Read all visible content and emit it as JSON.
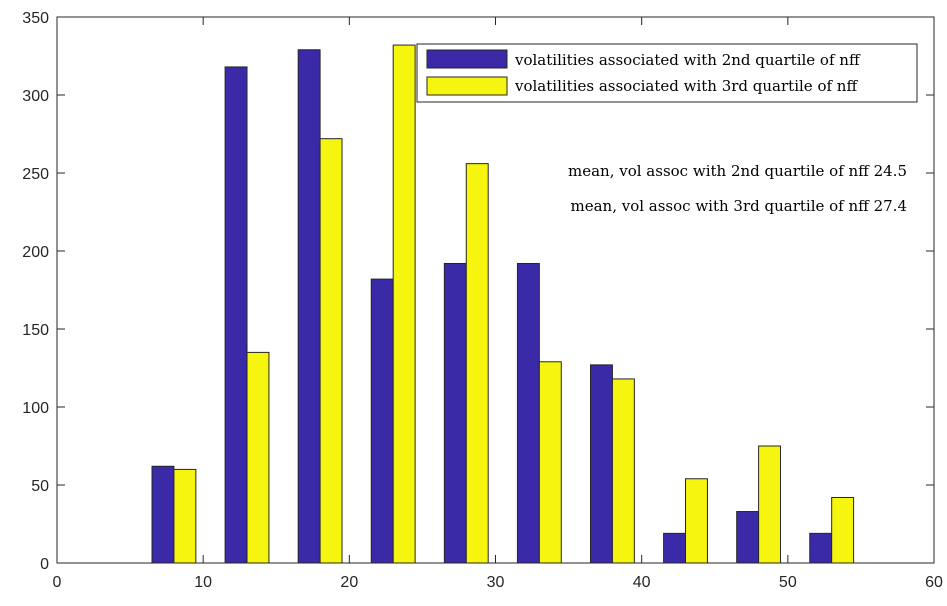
{
  "chart_data": {
    "type": "bar",
    "title": "",
    "xlabel": "",
    "ylabel": "",
    "xlim": [
      0,
      60
    ],
    "ylim": [
      0,
      350
    ],
    "x_ticks": [
      0,
      10,
      20,
      30,
      40,
      50,
      60
    ],
    "y_ticks": [
      0,
      50,
      100,
      150,
      200,
      250,
      300,
      350
    ],
    "x_tick_labels": [
      "0",
      "10",
      "20",
      "30",
      "40",
      "50",
      "60"
    ],
    "y_tick_labels": [
      "0",
      "50",
      "100",
      "150",
      "200",
      "250",
      "300",
      "350"
    ],
    "grid": false,
    "legend_position": "top-right",
    "bin_centers": [
      8,
      13,
      18,
      23,
      28,
      33,
      38,
      43,
      48,
      53
    ],
    "series": [
      {
        "name": "volatilities associated with 2nd quartile of nff",
        "color": "#3a2aa8",
        "values": [
          62,
          318,
          329,
          182,
          192,
          192,
          127,
          19,
          33,
          19
        ]
      },
      {
        "name": "volatilities associated with 3rd quartile of nff",
        "color": "#f5f50f",
        "values": [
          60,
          135,
          272,
          332,
          256,
          129,
          118,
          54,
          75,
          42
        ]
      }
    ],
    "annotations": [
      "mean, vol assoc with 2nd quartile of nff 24.5",
      "mean, vol assoc with 3rd quartile of nff 27.4"
    ]
  }
}
